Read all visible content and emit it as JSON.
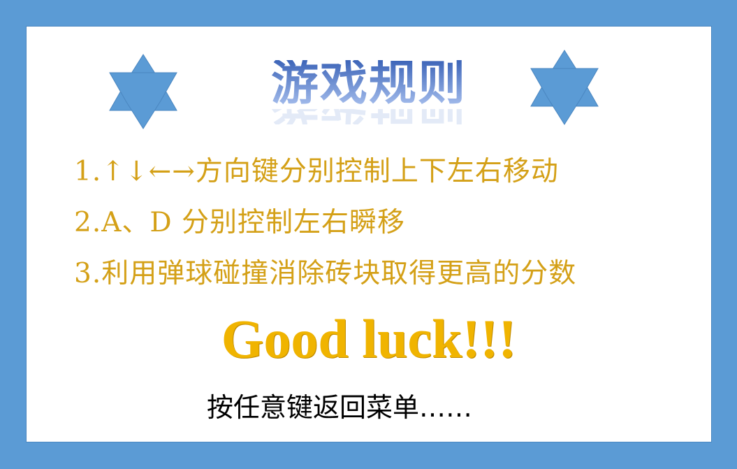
{
  "title": "游戏规则",
  "rules": [
    "1.↑↓←→方向键分别控制上下左右移动",
    "2.A、D 分别控制左右瞬移",
    "3.利用弹球碰撞消除砖块取得更高的分数"
  ],
  "good_luck": "Good luck!!!",
  "press_key": "按任意键返回菜单……",
  "colors": {
    "background": "#5b9bd5",
    "panel": "#ffffff",
    "star": "#5b9bd5",
    "rule_text": "#d4a017",
    "good_luck": "#f0b400"
  },
  "icons": [
    "star-icon",
    "star-icon"
  ]
}
